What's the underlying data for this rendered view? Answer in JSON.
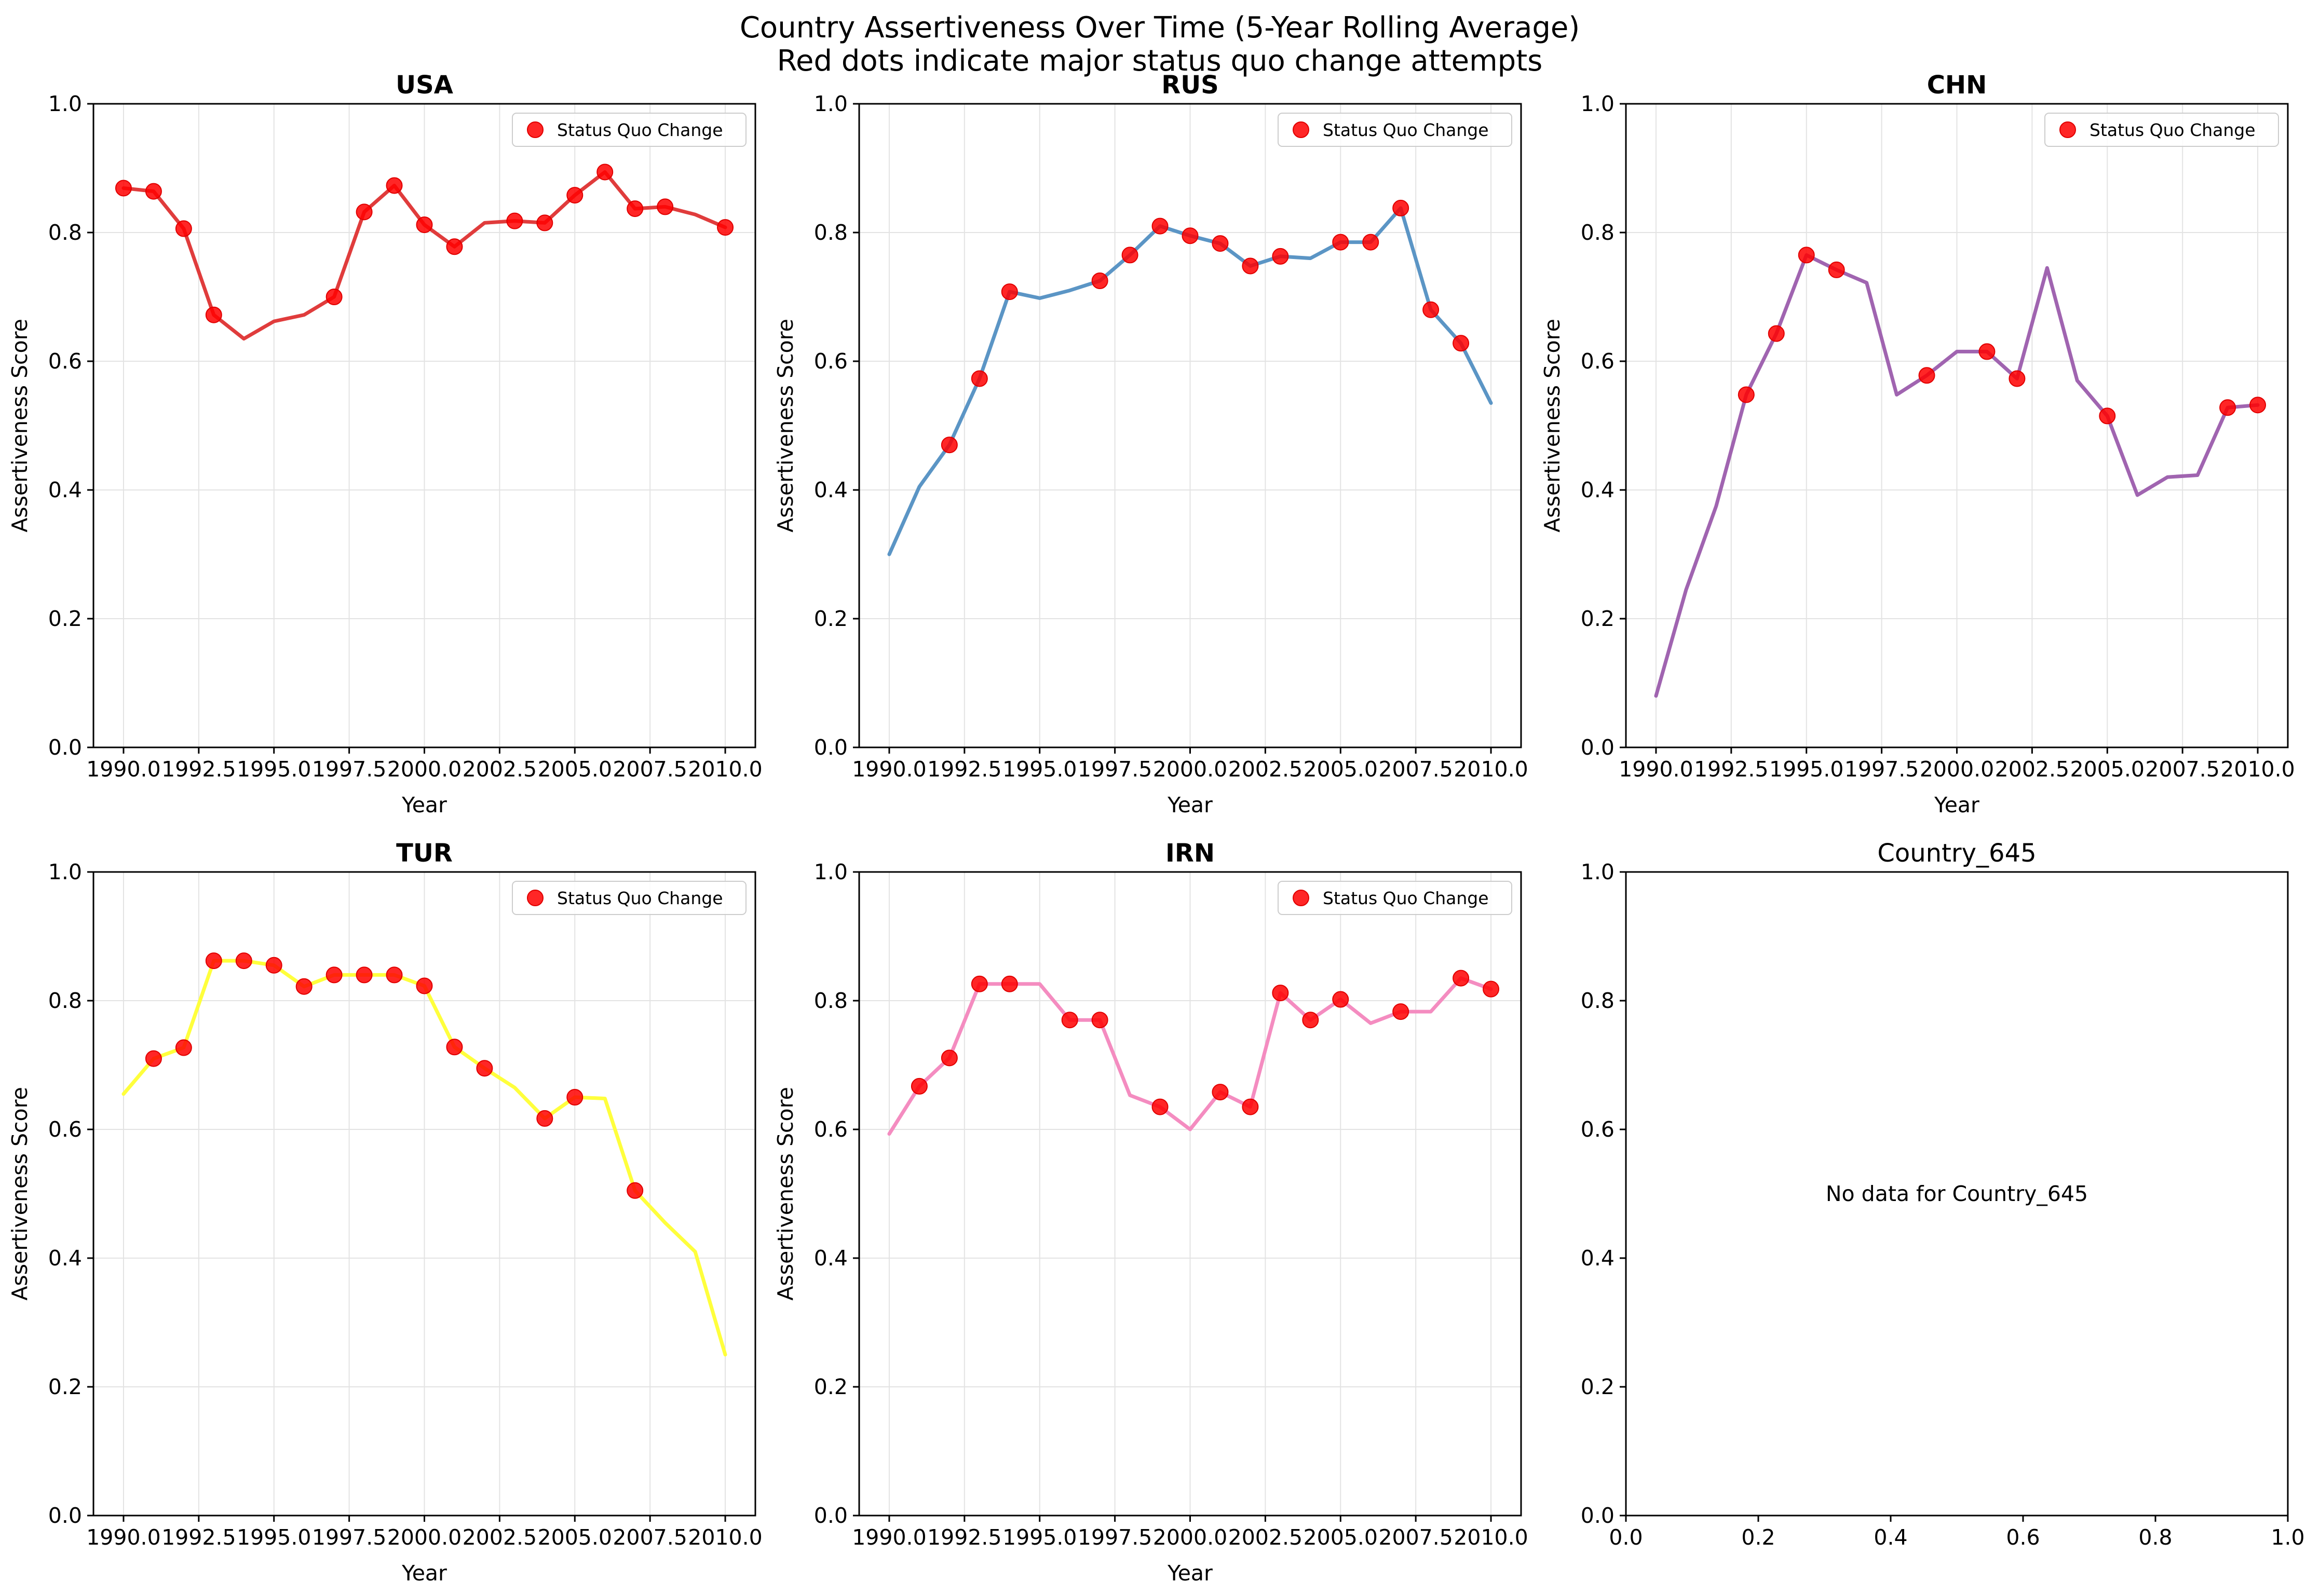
{
  "suptitle": {
    "line1": "Country Assertiveness Over Time (5-Year Rolling Average)",
    "line2": "Red dots indicate major status quo change attempts"
  },
  "chart_data": [
    {
      "type": "line",
      "title": "USA",
      "xlabel": "Year",
      "ylabel": "Assertiveness Score",
      "xlim": [
        1989,
        2011
      ],
      "ylim": [
        0,
        1
      ],
      "xticks": [
        1990.0,
        1992.5,
        1995.0,
        1997.5,
        2000.0,
        2002.5,
        2005.0,
        2007.5,
        2010.0
      ],
      "xtick_labels": [
        "1990.0",
        "1992.5",
        "1995.0",
        "1997.5",
        "2000.0",
        "2002.5",
        "2005.0",
        "2007.5",
        "2010.0"
      ],
      "yticks": [
        0.0,
        0.2,
        0.4,
        0.6,
        0.8,
        1.0
      ],
      "ytick_labels": [
        "0.0",
        "0.2",
        "0.4",
        "0.6",
        "0.8",
        "1.0"
      ],
      "grid": true,
      "legend": {
        "label": "Status Quo Change",
        "placement": "upper right"
      },
      "line_color": "#e03c3c",
      "marker_color": "#ff0000",
      "x": [
        1990,
        1991,
        1992,
        1993,
        1994,
        1995,
        1996,
        1997,
        1998,
        1999,
        2000,
        2001,
        2002,
        2003,
        2004,
        2005,
        2006,
        2007,
        2008,
        2009,
        2010
      ],
      "y": [
        0.869,
        0.864,
        0.806,
        0.672,
        0.635,
        0.662,
        0.672,
        0.7,
        0.832,
        0.873,
        0.812,
        0.778,
        0.815,
        0.818,
        0.815,
        0.858,
        0.894,
        0.837,
        0.84,
        0.828,
        0.808
      ],
      "events_x": [
        1990,
        1991,
        1992,
        1993,
        1997,
        1998,
        1999,
        2000,
        2001,
        2003,
        2004,
        2005,
        2006,
        2007,
        2008,
        2010
      ],
      "events_y": [
        0.869,
        0.864,
        0.806,
        0.672,
        0.7,
        0.832,
        0.873,
        0.812,
        0.778,
        0.818,
        0.815,
        0.858,
        0.894,
        0.837,
        0.84,
        0.808
      ]
    },
    {
      "type": "line",
      "title": "RUS",
      "xlabel": "Year",
      "ylabel": "Assertiveness Score",
      "xlim": [
        1989,
        2011
      ],
      "ylim": [
        0,
        1
      ],
      "xticks": [
        1990.0,
        1992.5,
        1995.0,
        1997.5,
        2000.0,
        2002.5,
        2005.0,
        2007.5,
        2010.0
      ],
      "xtick_labels": [
        "1990.0",
        "1992.5",
        "1995.0",
        "1997.5",
        "2000.0",
        "2002.5",
        "2005.0",
        "2007.5",
        "2010.0"
      ],
      "yticks": [
        0.0,
        0.2,
        0.4,
        0.6,
        0.8,
        1.0
      ],
      "ytick_labels": [
        "0.0",
        "0.2",
        "0.4",
        "0.6",
        "0.8",
        "1.0"
      ],
      "grid": true,
      "legend": {
        "label": "Status Quo Change",
        "placement": "upper right"
      },
      "line_color": "#5b95c5",
      "marker_color": "#ff0000",
      "x": [
        1990,
        1991,
        1992,
        1993,
        1994,
        1995,
        1996,
        1997,
        1998,
        1999,
        2000,
        2001,
        2002,
        2003,
        2004,
        2005,
        2006,
        2007,
        2008,
        2009,
        2010
      ],
      "y": [
        0.3,
        0.405,
        0.47,
        0.573,
        0.708,
        0.698,
        0.71,
        0.725,
        0.765,
        0.81,
        0.795,
        0.783,
        0.748,
        0.763,
        0.76,
        0.785,
        0.785,
        0.838,
        0.68,
        0.628,
        0.535
      ],
      "events_x": [
        1992,
        1993,
        1994,
        1997,
        1998,
        1999,
        2000,
        2001,
        2002,
        2003,
        2005,
        2006,
        2007,
        2008,
        2009
      ],
      "events_y": [
        0.47,
        0.573,
        0.708,
        0.725,
        0.765,
        0.81,
        0.795,
        0.783,
        0.748,
        0.763,
        0.785,
        0.785,
        0.838,
        0.68,
        0.628
      ]
    },
    {
      "type": "line",
      "title": "CHN",
      "xlabel": "Year",
      "ylabel": "Assertiveness Score",
      "xlim": [
        1989,
        2011
      ],
      "ylim": [
        0,
        1
      ],
      "xticks": [
        1990.0,
        1992.5,
        1995.0,
        1997.5,
        2000.0,
        2002.5,
        2005.0,
        2007.5,
        2010.0
      ],
      "xtick_labels": [
        "1990.0",
        "1992.5",
        "1995.0",
        "1997.5",
        "2000.0",
        "2002.5",
        "2005.0",
        "2007.5",
        "2010.0"
      ],
      "yticks": [
        0.0,
        0.2,
        0.4,
        0.6,
        0.8,
        1.0
      ],
      "ytick_labels": [
        "0.0",
        "0.2",
        "0.4",
        "0.6",
        "0.8",
        "1.0"
      ],
      "grid": true,
      "legend": {
        "label": "Status Quo Change",
        "placement": "upper right"
      },
      "line_color": "#a064b0",
      "marker_color": "#ff0000",
      "x": [
        1990,
        1991,
        1992,
        1993,
        1994,
        1995,
        1996,
        1997,
        1998,
        1999,
        2000,
        2001,
        2002,
        2003,
        2004,
        2005,
        2006,
        2007,
        2008,
        2009,
        2010
      ],
      "y": [
        0.08,
        0.245,
        0.375,
        0.548,
        0.643,
        0.765,
        0.742,
        0.722,
        0.548,
        0.578,
        0.615,
        0.615,
        0.573,
        0.745,
        0.57,
        0.515,
        0.392,
        0.42,
        0.423,
        0.528,
        0.532
      ],
      "events_x": [
        1993,
        1994,
        1995,
        1996,
        1999,
        2001,
        2002,
        2005,
        2009,
        2010
      ],
      "events_y": [
        0.548,
        0.643,
        0.765,
        0.742,
        0.578,
        0.615,
        0.573,
        0.515,
        0.528,
        0.532
      ]
    },
    {
      "type": "line",
      "title": "TUR",
      "xlabel": "Year",
      "ylabel": "Assertiveness Score",
      "xlim": [
        1989,
        2011
      ],
      "ylim": [
        0,
        1
      ],
      "xticks": [
        1990.0,
        1992.5,
        1995.0,
        1997.5,
        2000.0,
        2002.5,
        2005.0,
        2007.5,
        2010.0
      ],
      "xtick_labels": [
        "1990.0",
        "1992.5",
        "1995.0",
        "1997.5",
        "2000.0",
        "2002.5",
        "2005.0",
        "2007.5",
        "2010.0"
      ],
      "yticks": [
        0.0,
        0.2,
        0.4,
        0.6,
        0.8,
        1.0
      ],
      "ytick_labels": [
        "0.0",
        "0.2",
        "0.4",
        "0.6",
        "0.8",
        "1.0"
      ],
      "grid": true,
      "legend": {
        "label": "Status Quo Change",
        "placement": "upper right"
      },
      "line_color": "#ffff3c",
      "marker_color": "#ff0000",
      "x": [
        1990,
        1991,
        1992,
        1993,
        1994,
        1995,
        1996,
        1997,
        1998,
        1999,
        2000,
        2001,
        2002,
        2003,
        2004,
        2005,
        2006,
        2007,
        2008,
        2009,
        2010
      ],
      "y": [
        0.655,
        0.71,
        0.727,
        0.862,
        0.862,
        0.855,
        0.822,
        0.84,
        0.84,
        0.84,
        0.823,
        0.728,
        0.695,
        0.665,
        0.617,
        0.65,
        0.648,
        0.505,
        0.455,
        0.41,
        0.25
      ],
      "events_x": [
        1991,
        1992,
        1993,
        1994,
        1995,
        1996,
        1997,
        1998,
        1999,
        2000,
        2001,
        2002,
        2004,
        2005,
        2007
      ],
      "events_y": [
        0.71,
        0.727,
        0.862,
        0.862,
        0.855,
        0.822,
        0.84,
        0.84,
        0.84,
        0.823,
        0.728,
        0.695,
        0.617,
        0.65,
        0.505
      ]
    },
    {
      "type": "line",
      "title": "IRN",
      "xlabel": "Year",
      "ylabel": "Assertiveness Score",
      "xlim": [
        1989,
        2011
      ],
      "ylim": [
        0,
        1
      ],
      "xticks": [
        1990.0,
        1992.5,
        1995.0,
        1997.5,
        2000.0,
        2002.5,
        2005.0,
        2007.5,
        2010.0
      ],
      "xtick_labels": [
        "1990.0",
        "1992.5",
        "1995.0",
        "1997.5",
        "2000.0",
        "2002.5",
        "2005.0",
        "2007.5",
        "2010.0"
      ],
      "yticks": [
        0.0,
        0.2,
        0.4,
        0.6,
        0.8,
        1.0
      ],
      "ytick_labels": [
        "0.0",
        "0.2",
        "0.4",
        "0.6",
        "0.8",
        "1.0"
      ],
      "grid": true,
      "legend": {
        "label": "Status Quo Change",
        "placement": "upper right"
      },
      "line_color": "#f48cc0",
      "marker_color": "#ff0000",
      "x": [
        1990,
        1991,
        1992,
        1993,
        1994,
        1995,
        1996,
        1997,
        1998,
        1999,
        2000,
        2001,
        2002,
        2003,
        2004,
        2005,
        2006,
        2007,
        2008,
        2009,
        2010
      ],
      "y": [
        0.593,
        0.667,
        0.711,
        0.826,
        0.826,
        0.826,
        0.77,
        0.77,
        0.653,
        0.635,
        0.6,
        0.658,
        0.635,
        0.812,
        0.77,
        0.802,
        0.765,
        0.783,
        0.783,
        0.835,
        0.818
      ],
      "events_x": [
        1991,
        1992,
        1993,
        1994,
        1996,
        1997,
        1999,
        2001,
        2002,
        2003,
        2004,
        2005,
        2007,
        2009,
        2010
      ],
      "events_y": [
        0.667,
        0.711,
        0.826,
        0.826,
        0.77,
        0.77,
        0.635,
        0.658,
        0.635,
        0.812,
        0.77,
        0.802,
        0.783,
        0.835,
        0.818
      ]
    },
    {
      "type": "line",
      "title": "Country_645",
      "xlabel": "",
      "ylabel": "",
      "xlim": [
        0,
        1
      ],
      "ylim": [
        0,
        1
      ],
      "xticks": [
        0.0,
        0.2,
        0.4,
        0.6,
        0.8,
        1.0
      ],
      "xtick_labels": [
        "0.0",
        "0.2",
        "0.4",
        "0.6",
        "0.8",
        "1.0"
      ],
      "yticks": [
        0.0,
        0.2,
        0.4,
        0.6,
        0.8,
        1.0
      ],
      "ytick_labels": [
        "0.0",
        "0.2",
        "0.4",
        "0.6",
        "0.8",
        "1.0"
      ],
      "grid": false,
      "note": "No data for Country_645",
      "x": [],
      "y": []
    }
  ]
}
